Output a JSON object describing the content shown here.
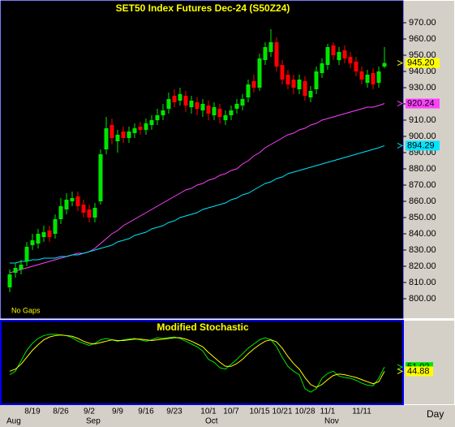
{
  "chart_data": [
    {
      "type": "candlestick",
      "title": "SET50 Index Futures Dec-24 (S50Z24)",
      "annotation": "No Gaps",
      "x_label": "Day",
      "categories": [
        null,
        null,
        null,
        null,
        "8/19",
        null,
        null,
        null,
        null,
        "8/26",
        null,
        null,
        null,
        null,
        "9/2",
        null,
        null,
        null,
        null,
        "9/9",
        null,
        null,
        null,
        null,
        "9/16",
        null,
        null,
        null,
        null,
        "9/23",
        null,
        null,
        null,
        null,
        null,
        "10/1",
        null,
        null,
        null,
        "10/7",
        null,
        null,
        null,
        null,
        "10/15",
        null,
        null,
        null,
        "10/21",
        null,
        null,
        null,
        "10/28",
        null,
        null,
        null,
        "11/1",
        null,
        null,
        null,
        null,
        null,
        "11/11",
        null,
        null,
        null,
        null
      ],
      "months": [
        "Aug",
        null,
        null,
        null,
        null,
        null,
        null,
        null,
        null,
        null,
        null,
        null,
        null,
        null,
        "Sep",
        null,
        null,
        null,
        null,
        null,
        null,
        null,
        null,
        null,
        null,
        null,
        null,
        null,
        null,
        null,
        null,
        null,
        null,
        null,
        null,
        "Oct",
        null,
        null,
        null,
        null,
        null,
        null,
        null,
        null,
        null,
        null,
        null,
        null,
        null,
        null,
        null,
        null,
        null,
        null,
        null,
        null,
        "Nov",
        null,
        null,
        null,
        null,
        null,
        null,
        null,
        null,
        null,
        null
      ],
      "open": [
        807,
        816,
        818,
        823,
        833,
        834,
        838,
        842,
        840,
        849,
        855,
        860,
        863,
        858,
        855,
        850,
        860,
        892,
        907,
        897,
        903,
        899,
        902,
        906,
        904,
        907,
        910,
        913,
        917,
        925,
        922,
        925,
        918,
        921,
        916,
        919,
        913,
        917,
        910,
        913,
        917,
        919,
        924,
        934,
        930,
        947,
        952,
        958,
        944,
        938,
        935,
        929,
        934,
        924,
        929,
        939,
        944,
        956,
        947,
        953,
        949,
        946,
        940,
        933,
        939,
        933,
        943
      ],
      "high": [
        818,
        822,
        824,
        835,
        840,
        843,
        845,
        845,
        852,
        862,
        865,
        866,
        866,
        861,
        858,
        859,
        892,
        912,
        911,
        904,
        906,
        906,
        908,
        909,
        911,
        913,
        917,
        920,
        927,
        929,
        930,
        928,
        925,
        924,
        923,
        922,
        921,
        920,
        916,
        919,
        923,
        926,
        935,
        938,
        951,
        958,
        966,
        961,
        947,
        941,
        938,
        938,
        937,
        931,
        943,
        948,
        957,
        958,
        955,
        956,
        952,
        949,
        943,
        941,
        942,
        943,
        955
      ],
      "low": [
        804,
        813,
        815,
        820,
        830,
        831,
        835,
        835,
        837,
        846,
        852,
        857,
        854,
        850,
        847,
        847,
        858,
        889,
        895,
        890,
        896,
        896,
        899,
        901,
        901,
        904,
        907,
        910,
        914,
        918,
        919,
        915,
        914,
        913,
        912,
        910,
        910,
        908,
        907,
        910,
        914,
        916,
        921,
        927,
        928,
        944,
        949,
        940,
        932,
        929,
        926,
        926,
        922,
        921,
        926,
        936,
        941,
        947,
        944,
        945,
        942,
        937,
        932,
        930,
        929,
        930,
        942
      ],
      "close": [
        815,
        819,
        821,
        832,
        836,
        840,
        841,
        838,
        849,
        857,
        861,
        862,
        857,
        853,
        850,
        856,
        889,
        905,
        899,
        901,
        899,
        903,
        905,
        904,
        908,
        910,
        913,
        916,
        923,
        921,
        926,
        919,
        922,
        917,
        920,
        914,
        918,
        912,
        913,
        916,
        920,
        923,
        932,
        930,
        948,
        955,
        958,
        943,
        935,
        932,
        930,
        935,
        925,
        928,
        940,
        945,
        955,
        950,
        952,
        948,
        945,
        940,
        935,
        938,
        932,
        940,
        945.2
      ],
      "close_labels": [
        null,
        null,
        null,
        null,
        null,
        null,
        null,
        null,
        null,
        null,
        null,
        null,
        null,
        null,
        null,
        null,
        null,
        null,
        null,
        null,
        null,
        null,
        null,
        null,
        null,
        null,
        null,
        null,
        null,
        null,
        null,
        null,
        null,
        null,
        null,
        null,
        null,
        null,
        null,
        null,
        null,
        null,
        null,
        null,
        null,
        null,
        null,
        null,
        null,
        null,
        null,
        null,
        null,
        null,
        null,
        null,
        null,
        null,
        null,
        null,
        null,
        null,
        null,
        null,
        null,
        null,
        "945.20"
      ],
      "close_label_color": "#ffff00",
      "up_color": "#00e600",
      "down_color": "#ff0000",
      "series": [
        {
          "color": "#ff40ff",
          "values": [
            816,
            817,
            818,
            819,
            820,
            821,
            822,
            823,
            824,
            825,
            826,
            827,
            828,
            828,
            829,
            831,
            834,
            837,
            840,
            842,
            845,
            847,
            849,
            851,
            853,
            855,
            857,
            859,
            861,
            863,
            865,
            867,
            868,
            870,
            871,
            873,
            874,
            876,
            877,
            879,
            880,
            883,
            885,
            888,
            890,
            893,
            895,
            897,
            899,
            901,
            902,
            904,
            905,
            907,
            908,
            910,
            911,
            912,
            913,
            914,
            915,
            916,
            917,
            918,
            918,
            919,
            920.24
          ]
        },
        {
          "color": "#00e5ff",
          "values": [
            822,
            822,
            823,
            823,
            824,
            824,
            825,
            825,
            825,
            826,
            826,
            827,
            827,
            828,
            829,
            830,
            831,
            832,
            833,
            835,
            836,
            837,
            839,
            840,
            841,
            843,
            844,
            845,
            847,
            848,
            850,
            851,
            852,
            853,
            855,
            856,
            857,
            858,
            859,
            861,
            862,
            864,
            865,
            867,
            869,
            871,
            872,
            874,
            875,
            877,
            878,
            879,
            880,
            881,
            882,
            883,
            884,
            885,
            886,
            887,
            888,
            889,
            890,
            891,
            892,
            893,
            894.29
          ]
        }
      ],
      "ylim": [
        788,
        983
      ],
      "yticks": [
        {
          "value": 800,
          "label": "800.00"
        },
        {
          "value": 810,
          "label": "810.00"
        },
        {
          "value": 820,
          "label": "820.00"
        },
        {
          "value": 830,
          "label": "830.00"
        },
        {
          "value": 840,
          "label": "840.00"
        },
        {
          "value": 850,
          "label": "850.00"
        },
        {
          "value": 860,
          "label": "860.00"
        },
        {
          "value": 870,
          "label": "870.00"
        },
        {
          "value": 880,
          "label": "880.00"
        },
        {
          "value": 890,
          "label": "890.00"
        },
        {
          "value": 900,
          "label": "900.00"
        },
        {
          "value": 910,
          "label": "910.00"
        },
        {
          "value": 920,
          "label": "920.00"
        },
        {
          "value": 930,
          "label": "930.00"
        },
        {
          "value": 940,
          "label": "940.00"
        },
        {
          "value": 950,
          "label": "950.00"
        },
        {
          "value": 960,
          "label": "960.00"
        },
        {
          "value": 970,
          "label": "970.00"
        }
      ]
    },
    {
      "type": "line",
      "title": "Modified Stochastic",
      "ylim": [
        0,
        100
      ],
      "series": [
        {
          "color": "#00e600",
          "values": [
            40,
            45,
            60,
            75,
            85,
            92,
            96,
            98,
            98,
            97,
            96,
            93,
            88,
            85,
            82,
            85,
            90,
            92,
            90,
            88,
            90,
            91,
            92,
            90,
            88,
            90,
            93,
            92,
            93,
            94,
            92,
            88,
            84,
            80,
            74,
            62,
            58,
            50,
            48,
            55,
            62,
            70,
            78,
            84,
            90,
            93,
            90,
            80,
            65,
            52,
            45,
            40,
            20,
            15,
            20,
            35,
            42,
            45,
            38,
            36,
            35,
            32,
            28,
            25,
            24,
            35,
            51.02
          ]
        },
        {
          "color": "#ffff00",
          "values": [
            45,
            48,
            55,
            65,
            75,
            83,
            90,
            94,
            96,
            97,
            96,
            95,
            92,
            88,
            85,
            84,
            86,
            88,
            90,
            89,
            89,
            90,
            91,
            91,
            90,
            89,
            90,
            91,
            92,
            93,
            93,
            91,
            88,
            84,
            80,
            72,
            65,
            58,
            52,
            52,
            56,
            62,
            70,
            77,
            83,
            88,
            90,
            87,
            78,
            66,
            56,
            48,
            36,
            26,
            22,
            26,
            33,
            39,
            41,
            40,
            38,
            36,
            33,
            30,
            27,
            30,
            44.88
          ]
        }
      ]
    }
  ]
}
